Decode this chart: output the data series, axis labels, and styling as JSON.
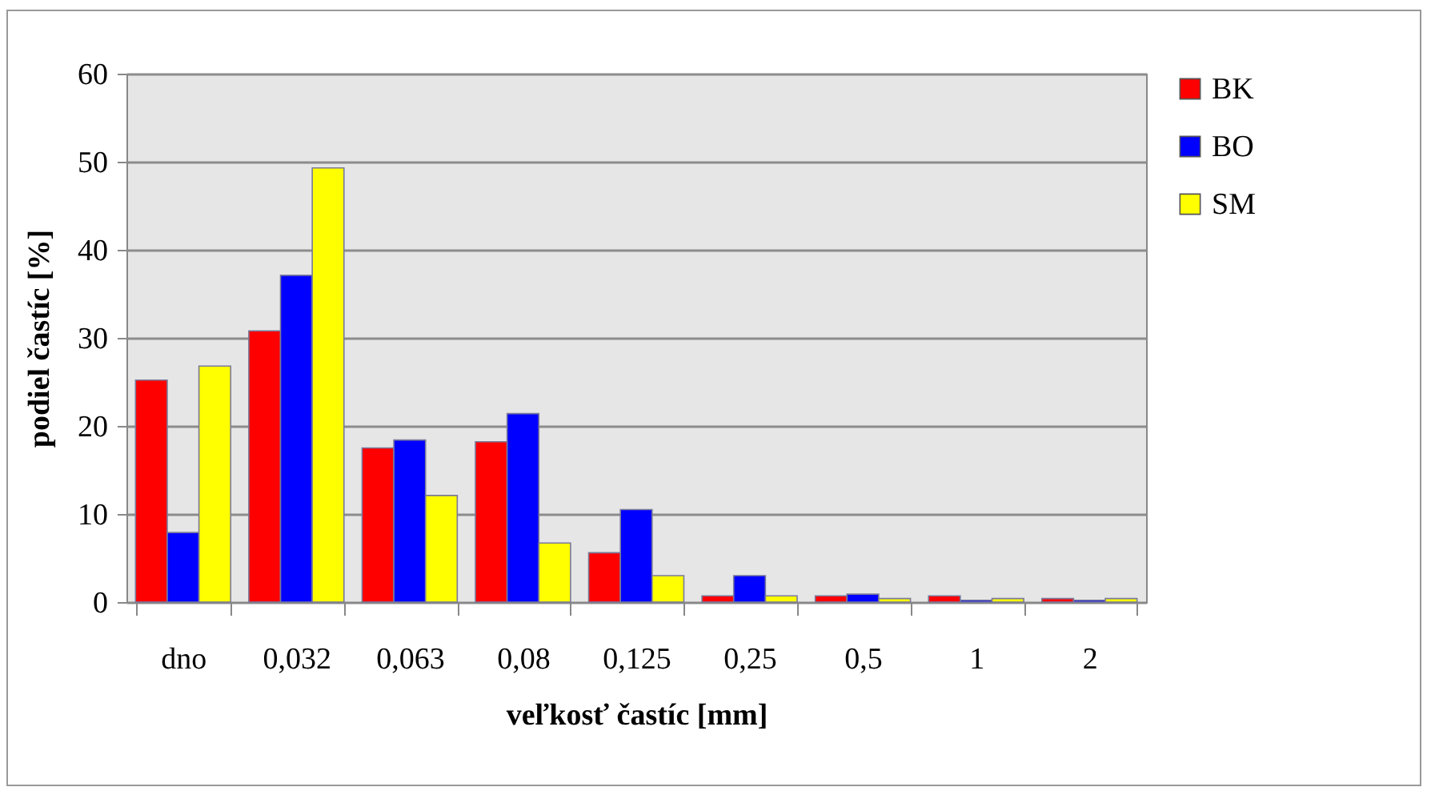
{
  "chart_data": {
    "type": "bar",
    "xlabel": "veľkosť častíc [mm]",
    "ylabel": "podiel častíc [%]",
    "categories": [
      "dno",
      "0,032",
      "0,063",
      "0,08",
      "0,125",
      "0,25",
      "0,5",
      "1",
      "2"
    ],
    "series": [
      {
        "name": "BK",
        "color": "#ff0000",
        "values": [
          25.2,
          30.8,
          17.5,
          18.2,
          5.6,
          0.7,
          0.7,
          0.7,
          0.4
        ]
      },
      {
        "name": "BO",
        "color": "#0000ff",
        "values": [
          7.9,
          37.1,
          18.4,
          21.4,
          10.5,
          3.0,
          0.9,
          0.2,
          0.2
        ]
      },
      {
        "name": "SM",
        "color": "#ffff00",
        "values": [
          26.8,
          49.3,
          12.1,
          6.7,
          3.0,
          0.7,
          0.4,
          0.4,
          0.4
        ]
      }
    ],
    "ylim": [
      0,
      60
    ],
    "yticks": [
      0,
      10,
      20,
      30,
      40,
      50,
      60
    ],
    "grid": "y",
    "legend": "right"
  }
}
